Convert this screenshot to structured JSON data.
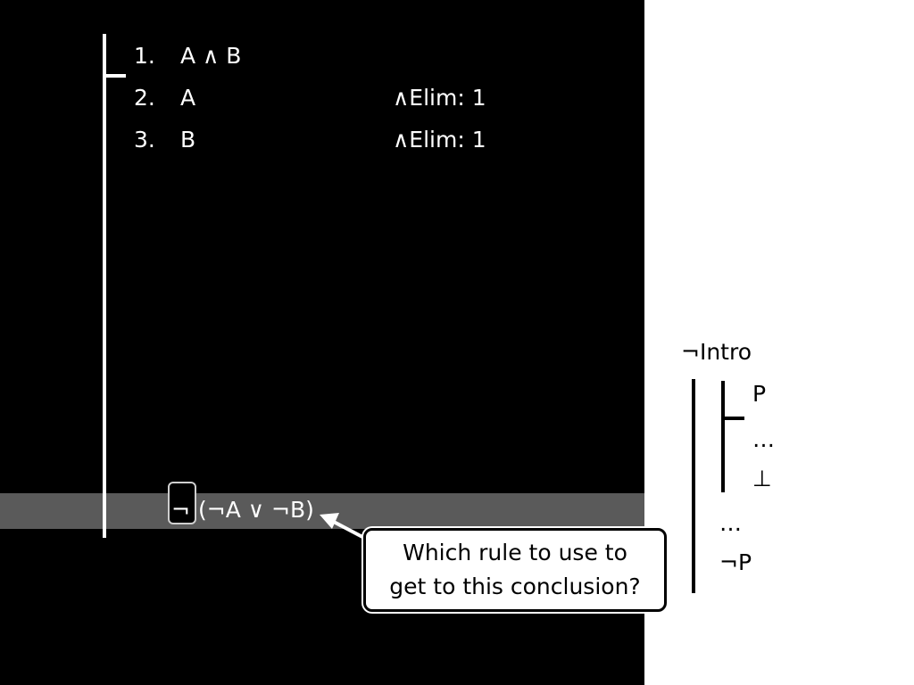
{
  "proof": {
    "lines": [
      {
        "num": "1.",
        "formula": "A ∧ B",
        "just": ""
      },
      {
        "num": "2.",
        "formula": "A",
        "just": "∧Elim: 1"
      },
      {
        "num": "3.",
        "formula": "B",
        "just": "∧Elim: 1"
      }
    ],
    "conclusion": {
      "highlighted": "¬",
      "rest": "(¬A ∨ ¬B)"
    }
  },
  "callout": {
    "text": "Which rule to use to\nget to this conclusion?"
  },
  "rule_schema": {
    "title": "¬Intro",
    "assumption": "P",
    "inner_dots": "…",
    "bottom": "⊥",
    "outer_dots": "…",
    "result": "¬P"
  },
  "colors": {
    "proof_background": "#000000",
    "conclusion_band": "#5a5a5a",
    "page_background": "#ffffff"
  }
}
